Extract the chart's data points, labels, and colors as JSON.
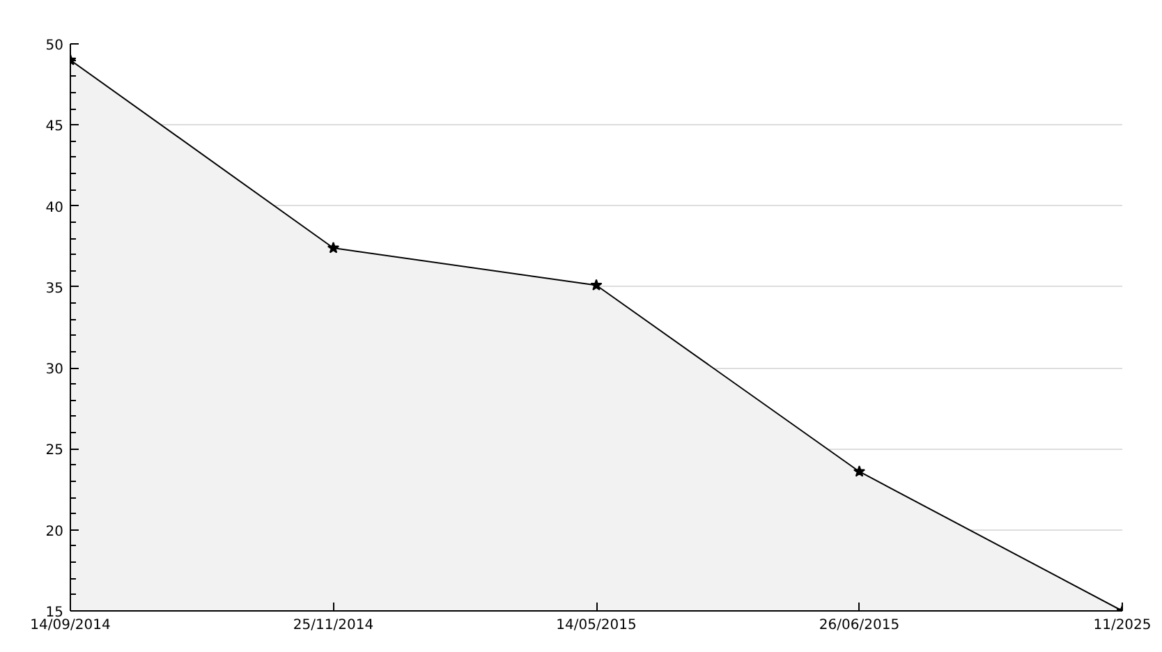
{
  "chart_data": {
    "type": "area",
    "categories": [
      "14/09/2014",
      "25/11/2014",
      "14/05/2015",
      "26/06/2015",
      "11/2025"
    ],
    "values": [
      49,
      37.4,
      35.1,
      23.6,
      15
    ],
    "color": "#000000",
    "ylim": [
      15,
      50
    ],
    "yticks": [
      15,
      20,
      25,
      30,
      35,
      40,
      45,
      50
    ],
    "grid": "y",
    "marker": "star"
  }
}
